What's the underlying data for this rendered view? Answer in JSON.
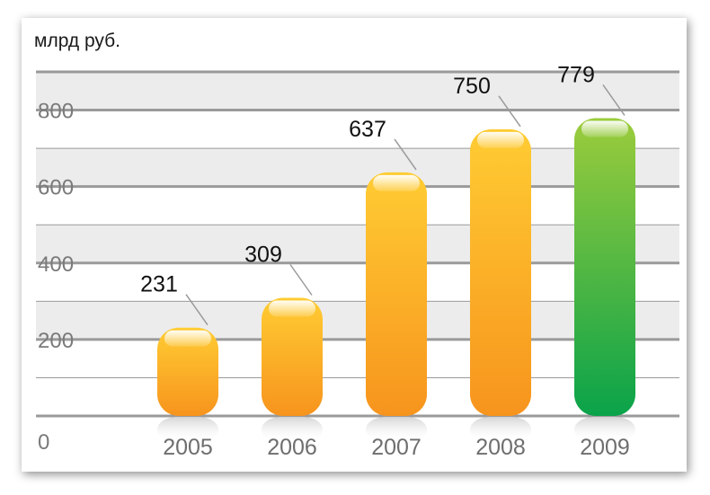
{
  "chart_data": {
    "type": "bar",
    "ylabel": "млрд руб.",
    "categories": [
      "2005",
      "2006",
      "2007",
      "2008",
      "2009"
    ],
    "values": [
      231,
      309,
      637,
      750,
      779
    ],
    "value_labels": [
      "231",
      "309",
      "637",
      "750",
      "779"
    ],
    "ylim": [
      0,
      900
    ],
    "yticks": [
      0,
      200,
      400,
      600,
      800
    ],
    "ytick_labels": [
      "0",
      "200",
      "400",
      "600",
      "800"
    ],
    "grid": true,
    "legend": "none",
    "colors": {
      "bar_top": "#ffcc33",
      "bar_bottom": "#f7941d",
      "highlight_top": "#9ccc3c",
      "highlight_bottom": "#0aa34a",
      "band": "#ececec",
      "gridline": "#9a9a9a",
      "leader": "#9a9a9a"
    },
    "highlight_index": 4
  }
}
